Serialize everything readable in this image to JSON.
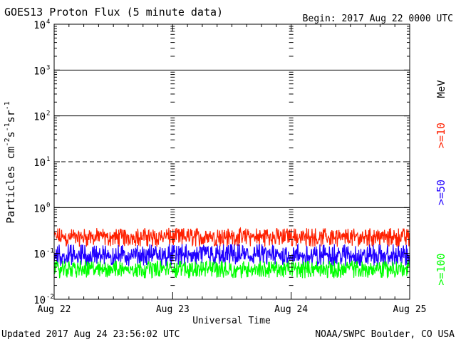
{
  "chart_data": {
    "type": "line",
    "title": "GOES13 Proton Flux (5 minute data)",
    "begin_label": "Begin: 2017 Aug 22 0000 UTC",
    "xlabel": "Universal Time",
    "ylabel": "Particles cm",
    "ylabel_parts": [
      "Particles cm",
      "-2",
      "s",
      "-1",
      "sr",
      "-1"
    ],
    "y_scale": "log",
    "ylim": [
      0.01,
      10000
    ],
    "y_ticks": [
      {
        "base": "10",
        "exp": "-2",
        "value": 0.01
      },
      {
        "base": "10",
        "exp": "-1",
        "value": 0.1
      },
      {
        "base": "10",
        "exp": "0",
        "value": 1
      },
      {
        "base": "10",
        "exp": "1",
        "value": 10
      },
      {
        "base": "10",
        "exp": "2",
        "value": 100
      },
      {
        "base": "10",
        "exp": "3",
        "value": 1000
      },
      {
        "base": "10",
        "exp": "4",
        "value": 10000
      }
    ],
    "x_ticks": [
      "Aug 22",
      "Aug 23",
      "Aug 24",
      "Aug 25"
    ],
    "xlim": [
      "2017-08-22",
      "2017-08-25"
    ],
    "threshold_lines": [
      {
        "value": 1,
        "style": "solid"
      },
      {
        "value": 10,
        "style": "dashed"
      },
      {
        "value": 100,
        "style": "solid"
      },
      {
        "value": 1000,
        "style": "solid"
      }
    ],
    "series": [
      {
        "name": ">=10",
        "color": "#ff2000",
        "typical": 0.2,
        "min": 0.12,
        "max": 0.36
      },
      {
        "name": ">=50",
        "color": "#2000ff",
        "typical": 0.075,
        "min": 0.045,
        "max": 0.16
      },
      {
        "name": ">=100",
        "color": "#00ff00",
        "typical": 0.04,
        "min": 0.025,
        "max": 0.07
      }
    ],
    "legend_unit": "MeV",
    "legend_placement": "right"
  },
  "footer": {
    "updated": "Updated 2017 Aug 24 23:56:02 UTC",
    "credit": "NOAA/SWPC Boulder, CO USA"
  }
}
